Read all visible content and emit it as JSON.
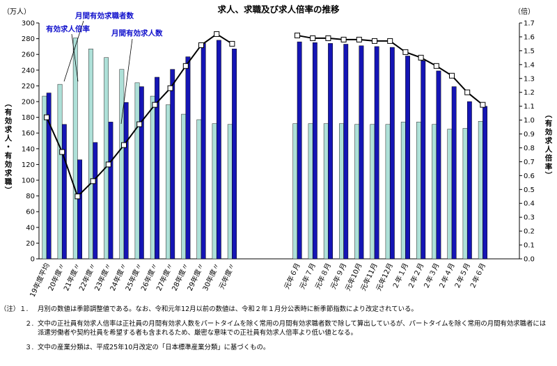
{
  "chart_data": {
    "type": "bar+line",
    "title": "求人、求職及び求人倍率の推移",
    "left_axis": {
      "unit": "（万人）",
      "label": "（有効求人・有効求職）",
      "range": [
        0,
        300
      ],
      "ticks": [
        "0",
        "20",
        "40",
        "60",
        "80",
        "100",
        "120",
        "140",
        "160",
        "180",
        "200",
        "220",
        "240",
        "260",
        "280",
        "300"
      ]
    },
    "right_axis": {
      "unit": "（倍）",
      "label": "（有効求人倍率）",
      "range": [
        0,
        1.7
      ],
      "ticks": [
        "0.0",
        "0.1",
        "0.2",
        "0.3",
        "0.4",
        "0.5",
        "0.6",
        "0.7",
        "0.8",
        "0.9",
        "1.0",
        "1.1",
        "1.2",
        "1.3",
        "1.4",
        "1.5",
        "1.6",
        "1.7"
      ]
    },
    "annual": {
      "categories": [
        "19年度平均",
        "20年度〃",
        "21年度〃",
        "22年度〃",
        "23年度〃",
        "24年度〃",
        "25年度〃",
        "26年度〃",
        "27年度〃",
        "28年度〃",
        "29年度〃",
        "30年度〃",
        "元年度〃"
      ],
      "applicants": [
        207,
        222,
        281,
        267,
        256,
        241,
        224,
        207,
        196,
        184,
        177,
        172,
        171
      ],
      "openings": [
        211,
        171,
        126,
        148,
        174,
        199,
        219,
        231,
        241,
        257,
        274,
        278,
        267
      ],
      "ratio": [
        1.02,
        0.77,
        0.45,
        0.56,
        0.68,
        0.82,
        0.97,
        1.11,
        1.23,
        1.39,
        1.54,
        1.62,
        1.55
      ]
    },
    "monthly": {
      "categories": [
        "元年６月",
        "元年７月",
        "元年８月",
        "元年９月",
        "元年10月",
        "元年11月",
        "元年12月",
        "２年１月",
        "２年２月",
        "２年３月",
        "２年４月",
        "２年５月",
        "２年６月"
      ],
      "applicants": [
        172,
        172,
        172,
        172,
        171,
        171,
        171,
        174,
        174,
        171,
        165,
        166,
        175
      ],
      "openings": [
        276,
        275,
        274,
        273,
        271,
        270,
        269,
        258,
        252,
        239,
        219,
        200,
        194
      ],
      "ratio": [
        1.61,
        1.59,
        1.59,
        1.58,
        1.58,
        1.57,
        1.57,
        1.49,
        1.45,
        1.39,
        1.32,
        1.2,
        1.11
      ]
    },
    "series": [
      {
        "name": "月間有効求職者数",
        "kind": "bar",
        "color": "#aee0d8"
      },
      {
        "name": "月間有効求人数",
        "kind": "bar",
        "color": "#1515b5"
      },
      {
        "name": "有効求人倍率",
        "kind": "line",
        "color": "#000000"
      }
    ],
    "annotations": [
      "月間有効求職者数",
      "有効求人倍率",
      "月間有効求人数"
    ],
    "annotation_color": "#1010cc",
    "grid": false
  },
  "notes": [
    {
      "num": "（注）１.",
      "text": "月別の数値は季節調整値である。なお、令和元年12月以前の数値は、令和２年１月分公表時に新季節指数により改定されている。"
    },
    {
      "num": "２.",
      "text": "文中の正社員有効求人倍率は正社員の月間有効求人数をパートタイムを除く常用の月間有効求職者数で除して算出しているが、パートタイムを除く常用の月間有効求職者には派遣労働者や契約社員を希望する者も含まれるため、厳密な意味での正社員有効求人倍率より低い値となる。"
    },
    {
      "num": "３.",
      "text": "文中の産業分類は、平成25年10月改定の「日本標準産業分類」に基づくもの。"
    }
  ]
}
